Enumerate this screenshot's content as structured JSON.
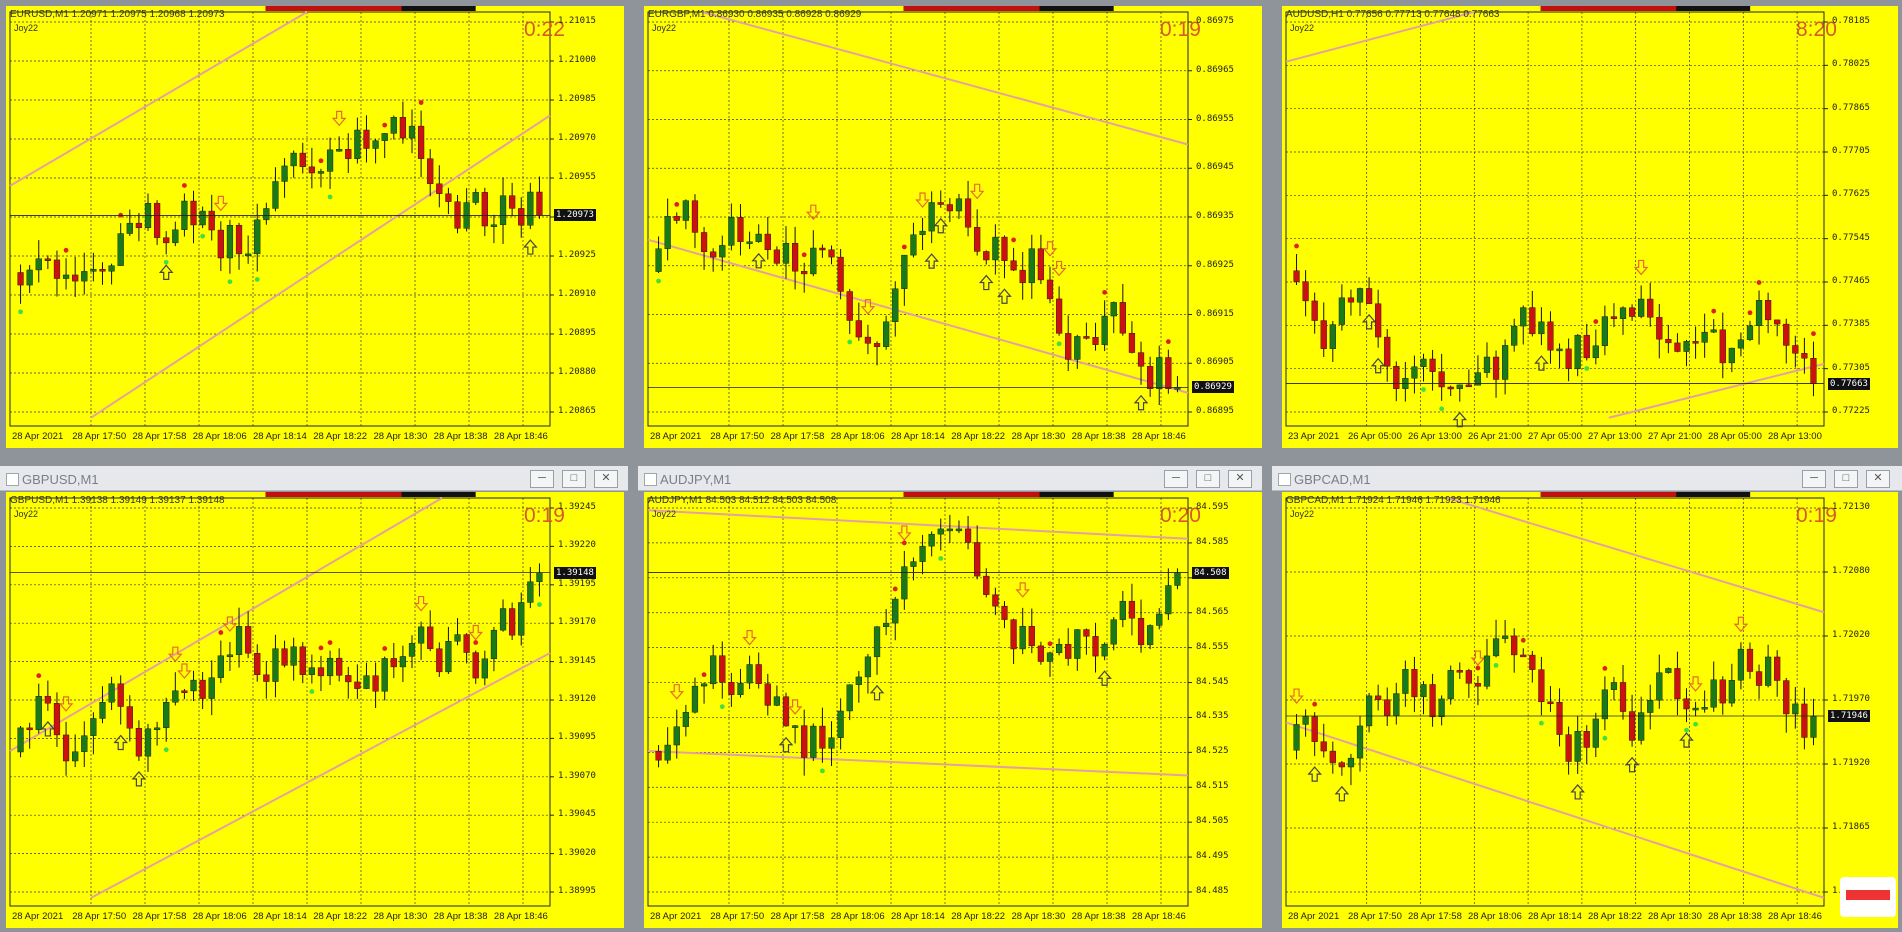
{
  "charts": [
    {
      "window_title": "",
      "symbol_line": "EURUSD,M1  1.20971 1.20975 1.20968 1.20973",
      "indicator": "Joy22",
      "timer": "0:22",
      "price_labels": [
        "1.21015",
        "1.21000",
        "1.20985",
        "1.20970",
        "1.20955",
        "1.20940",
        "1.20925",
        "1.20910",
        "1.20895",
        "1.20880",
        "1.20865"
      ],
      "current_price": "1.20973",
      "time_labels": [
        "28 Apr 2021",
        "28 Apr 17:50",
        "28 Apr 17:58",
        "28 Apr 18:06",
        "28 Apr 18:14",
        "28 Apr 18:22",
        "28 Apr 18:30",
        "28 Apr 18:38",
        "28 Apr 18:46"
      ]
    },
    {
      "window_title": "",
      "symbol_line": "EURGBP,M1  0.86930 0.86935 0.86928 0.86929",
      "indicator": "Joy22",
      "timer": "0:19",
      "price_labels": [
        "0.86975",
        "0.86965",
        "0.86955",
        "0.86945",
        "0.86935",
        "0.86925",
        "0.86915",
        "0.86905",
        "0.86895"
      ],
      "current_price": "0.86929",
      "time_labels": [
        "28 Apr 2021",
        "28 Apr 17:50",
        "28 Apr 17:58",
        "28 Apr 18:06",
        "28 Apr 18:14",
        "28 Apr 18:22",
        "28 Apr 18:30",
        "28 Apr 18:38",
        "28 Apr 18:46"
      ]
    },
    {
      "window_title": "",
      "symbol_line": "AUDUSD,H1  0.77656 0.77713 0.77648 0.77663",
      "indicator": "Joy22",
      "timer": "8:20",
      "price_labels": [
        "0.78185",
        "0.78025",
        "0.77865",
        "0.77705",
        "0.77625",
        "0.77545",
        "0.77465",
        "0.77385",
        "0.77305",
        "0.77225"
      ],
      "current_price": "0.77663",
      "time_labels": [
        "23 Apr 2021",
        "26 Apr 05:00",
        "26 Apr 13:00",
        "26 Apr 21:00",
        "27 Apr 05:00",
        "27 Apr 13:00",
        "27 Apr 21:00",
        "28 Apr 05:00",
        "28 Apr 13:00"
      ]
    },
    {
      "window_title": "GBPUSD,M1",
      "symbol_line": "GBPUSD,M1  1.39138 1.39149 1.39137 1.39148",
      "indicator": "Joy22",
      "timer": "0:19",
      "price_labels": [
        "1.39245",
        "1.39220",
        "1.39195",
        "1.39170",
        "1.39145",
        "1.39120",
        "1.39095",
        "1.39070",
        "1.39045",
        "1.39020",
        "1.38995"
      ],
      "current_price": "1.39148",
      "time_labels": [
        "28 Apr 2021",
        "28 Apr 17:50",
        "28 Apr 17:58",
        "28 Apr 18:06",
        "28 Apr 18:14",
        "28 Apr 18:22",
        "28 Apr 18:30",
        "28 Apr 18:38",
        "28 Apr 18:46"
      ]
    },
    {
      "window_title": "AUDJPY,M1",
      "symbol_line": "AUDJPY,M1  84.503 84.512 84.503 84.508",
      "indicator": "Joy22",
      "timer": "0:20",
      "price_labels": [
        "84.595",
        "84.585",
        "84.575",
        "84.565",
        "84.555",
        "84.545",
        "84.535",
        "84.525",
        "84.515",
        "84.505",
        "84.495",
        "84.485"
      ],
      "current_price": "84.508",
      "time_labels": [
        "28 Apr 2021",
        "28 Apr 17:50",
        "28 Apr 17:58",
        "28 Apr 18:06",
        "28 Apr 18:14",
        "28 Apr 18:22",
        "28 Apr 18:30",
        "28 Apr 18:38",
        "28 Apr 18:46"
      ]
    },
    {
      "window_title": "GBPCAD,M1",
      "symbol_line": "GBPCAD,M1  1.71924 1.71946 1.71923 1.71946",
      "indicator": "Joy22",
      "timer": "0:19",
      "price_labels": [
        "1.72130",
        "1.72080",
        "1.72020",
        "1.71970",
        "1.71920",
        "1.71865",
        "1.71810"
      ],
      "current_price": "1.71946",
      "time_labels": [
        "28 Apr 2021",
        "28 Apr 17:50",
        "28 Apr 17:58",
        "28 Apr 18:06",
        "28 Apr 18:14",
        "28 Apr 18:22",
        "28 Apr 18:30",
        "28 Apr 18:38",
        "28 Apr 18:46"
      ]
    }
  ],
  "window_buttons": {
    "minimize": "─",
    "maximize": "□",
    "close": "✕"
  },
  "colors": {
    "background": "#ffff00",
    "bull": "#1a7a1a",
    "bear": "#cc1111",
    "grid": "#333333",
    "arrow": "#e86a2a",
    "trendline": "#e7a0a0"
  }
}
